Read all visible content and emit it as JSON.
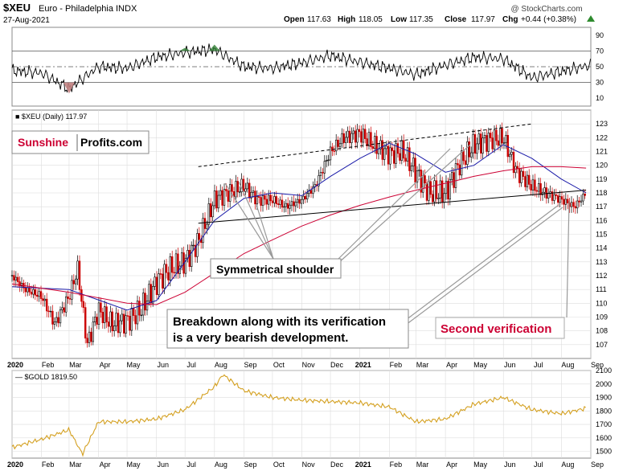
{
  "header": {
    "symbol": "$XEU",
    "name": "Euro - Philadelphia INDX",
    "date": "27-Aug-2021",
    "watermark": "@ StockCharts.com",
    "open_label": "Open",
    "open": "117.63",
    "high_label": "High",
    "high": "118.05",
    "low_label": "Low",
    "low": "117.35",
    "close_label": "Close",
    "close": "117.97",
    "chg_label": "Chg",
    "chg": "+0.44 (+0.38%)",
    "chg_arrow": "up-triangle-icon"
  },
  "colors": {
    "up_candle": "#000000",
    "down_candle": "#cc0000",
    "ma50": "#1a1aa8",
    "ma200": "#cc0033",
    "gold": "#d4a020",
    "rsi_line": "#000000",
    "rsi_overbought_fill": "#2e7d32",
    "rsi_oversold_fill": "#c08080",
    "brand_red": "#cc0033",
    "annotation_red": "#cc0033",
    "grid": "#dddddd"
  },
  "brand": {
    "part1": "Sunshine",
    "part2": "Profits.com"
  },
  "annotations": {
    "shoulder": "Symmetrical shoulder",
    "breakdown_line1": "Breakdown along with its verification",
    "breakdown_line2": "is a very bearish development.",
    "second_verification": "Second verification"
  },
  "chart_data": [
    {
      "type": "line",
      "panel": "RSI",
      "ylim": [
        0,
        100
      ],
      "yticks": [
        10,
        30,
        50,
        70,
        90
      ],
      "reference_lines": [
        30,
        50,
        70
      ],
      "x": [
        "2020-01",
        "2020-02",
        "2020-03",
        "2020-04",
        "2020-05",
        "2020-06",
        "2020-07",
        "2020-08",
        "2020-09",
        "2020-10",
        "2020-11",
        "2020-12",
        "2021-01",
        "2021-02",
        "2021-03",
        "2021-04",
        "2021-05",
        "2021-06",
        "2021-07",
        "2021-08",
        "2021-09"
      ],
      "values": [
        45,
        42,
        22,
        50,
        48,
        62,
        68,
        72,
        50,
        48,
        55,
        64,
        56,
        48,
        40,
        52,
        62,
        60,
        36,
        44,
        52
      ]
    },
    {
      "type": "line",
      "panel": "price",
      "series_label": "$XEU (Daily) 117.97",
      "ylim": [
        106,
        124
      ],
      "yticks": [
        107,
        108,
        109,
        110,
        111,
        112,
        113,
        114,
        115,
        116,
        117,
        118,
        119,
        120,
        121,
        122,
        123
      ],
      "x_labels": [
        "2020",
        "Feb",
        "Mar",
        "Apr",
        "May",
        "Jun",
        "Jul",
        "Aug",
        "Sep",
        "Oct",
        "Nov",
        "Dec",
        "2021",
        "Feb",
        "Mar",
        "Apr",
        "May",
        "Jun",
        "Jul",
        "Aug",
        "Sep"
      ],
      "price": {
        "x": [
          "2020-01",
          "2020-01-15",
          "2020-02",
          "2020-02-15",
          "2020-03",
          "2020-03-10",
          "2020-03-20",
          "2020-04",
          "2020-04-15",
          "2020-05",
          "2020-05-15",
          "2020-06",
          "2020-06-15",
          "2020-07",
          "2020-07-15",
          "2020-08",
          "2020-08-15",
          "2020-09",
          "2020-09-15",
          "2020-10",
          "2020-10-15",
          "2020-11",
          "2020-11-15",
          "2020-12",
          "2020-12-15",
          "2021-01",
          "2021-01-15",
          "2021-02",
          "2021-02-15",
          "2021-03",
          "2021-03-15",
          "2021-04",
          "2021-04-15",
          "2021-05",
          "2021-05-15",
          "2021-06",
          "2021-06-15",
          "2021-07",
          "2021-07-15",
          "2021-08",
          "2021-08-15",
          "2021-08-27"
        ],
        "close": [
          112.0,
          111.0,
          110.5,
          108.5,
          110.5,
          112.5,
          107.0,
          109.5,
          108.5,
          108.7,
          109.5,
          111.5,
          112.5,
          113.0,
          114.5,
          117.5,
          118.0,
          118.5,
          117.5,
          117.5,
          117.0,
          117.5,
          118.5,
          121.0,
          122.0,
          122.3,
          121.5,
          120.8,
          121.0,
          119.5,
          118.0,
          118.0,
          120.0,
          121.5,
          121.8,
          122.0,
          119.5,
          118.5,
          118.0,
          117.5,
          117.0,
          117.97
        ]
      },
      "series": [
        {
          "name": "MA50",
          "x": [
            "2020-01",
            "2020-03",
            "2020-05",
            "2020-06",
            "2020-07",
            "2020-08",
            "2020-09",
            "2020-10",
            "2020-11",
            "2020-12",
            "2021-01",
            "2021-02",
            "2021-03",
            "2021-04",
            "2021-05",
            "2021-06",
            "2021-07",
            "2021-08",
            "2021-08-27"
          ],
          "values": [
            111.2,
            111.0,
            109.5,
            110.2,
            113.0,
            116.0,
            117.6,
            118.0,
            117.8,
            119.2,
            120.5,
            121.6,
            120.8,
            119.5,
            120.0,
            121.5,
            120.5,
            119.0,
            118.0
          ]
        },
        {
          "name": "MA200",
          "x": [
            "2020-01",
            "2020-03",
            "2020-05",
            "2020-06",
            "2020-07",
            "2020-08",
            "2020-09",
            "2020-10",
            "2020-11",
            "2020-12",
            "2021-01",
            "2021-02",
            "2021-03",
            "2021-04",
            "2021-05",
            "2021-06",
            "2021-07",
            "2021-08",
            "2021-08-27"
          ],
          "values": [
            111.4,
            110.8,
            110.0,
            109.9,
            110.8,
            112.2,
            113.6,
            114.6,
            115.6,
            116.4,
            117.1,
            117.7,
            118.2,
            118.7,
            119.2,
            119.6,
            119.9,
            119.9,
            119.8
          ]
        }
      ],
      "trendlines": [
        {
          "style": "dashed",
          "from": [
            "2020-07-15",
            119.9
          ],
          "to": [
            "2021-07-01",
            123.0
          ]
        },
        {
          "style": "solid",
          "from": [
            "2020-07-15",
            115.8
          ],
          "to": [
            "2021-08-27",
            118.2
          ]
        }
      ]
    },
    {
      "type": "line",
      "panel": "gold",
      "series": [
        {
          "name": "$GOLD 1819.50",
          "x": [
            "2020-01",
            "2020-02",
            "2020-03",
            "2020-03-15",
            "2020-04",
            "2020-05",
            "2020-06",
            "2020-07",
            "2020-08",
            "2020-08-10",
            "2020-09",
            "2020-10",
            "2020-11",
            "2020-12",
            "2021-01",
            "2021-02",
            "2021-03",
            "2021-04",
            "2021-05",
            "2021-06",
            "2021-07",
            "2021-08",
            "2021-08-27"
          ],
          "values": [
            1530,
            1590,
            1660,
            1480,
            1720,
            1720,
            1740,
            1810,
            1980,
            2070,
            1950,
            1900,
            1880,
            1870,
            1860,
            1830,
            1720,
            1740,
            1850,
            1900,
            1810,
            1780,
            1819.5
          ]
        }
      ],
      "ylim": [
        1450,
        2100
      ],
      "yticks": [
        1500,
        1600,
        1700,
        1800,
        1900,
        2000,
        2100
      ],
      "x_labels": [
        "2020",
        "Feb",
        "Mar",
        "Apr",
        "May",
        "Jun",
        "Jul",
        "Aug",
        "Sep",
        "Oct",
        "Nov",
        "Dec",
        "2021",
        "Feb",
        "Mar",
        "Apr",
        "May",
        "Jun",
        "Jul",
        "Aug",
        "Sep"
      ]
    }
  ]
}
